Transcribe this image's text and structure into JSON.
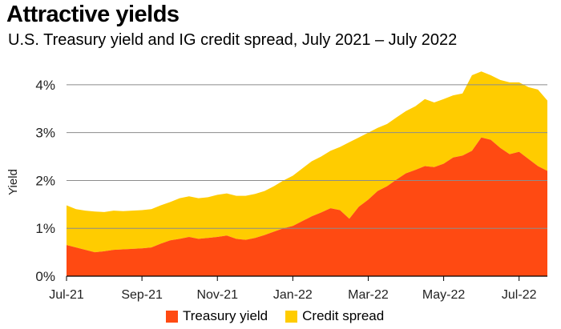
{
  "header": {
    "title": "Attractive yields",
    "subtitle": "U.S. Treasury yield and IG credit spread, July 2021 – July 2022"
  },
  "colors": {
    "treasury": "#FF4A12",
    "credit_spread": "#FFCC00",
    "grid": "#8C8C8C"
  },
  "chart_data": {
    "type": "area",
    "stacked": true,
    "title": "Attractive yields",
    "subtitle": "U.S. Treasury yield and IG credit spread, July 2021 – July 2022",
    "xlabel": "",
    "ylabel": "Yield",
    "ylim": [
      0,
      4.4
    ],
    "y_ticks": [
      0,
      1,
      2,
      3,
      4
    ],
    "y_tick_labels": [
      "0%",
      "1%",
      "2%",
      "3%",
      "4%"
    ],
    "x_ticks": [
      0,
      2,
      4,
      6,
      8,
      10,
      12
    ],
    "x_tick_labels": [
      "Jul-21",
      "Sep-21",
      "Nov-21",
      "Jan-22",
      "Mar-22",
      "May-22",
      "Jul-22"
    ],
    "grid": "horizontal",
    "legend_position": "bottom",
    "x": [
      0,
      0.25,
      0.5,
      0.75,
      1,
      1.25,
      1.5,
      1.75,
      2,
      2.25,
      2.5,
      2.75,
      3,
      3.25,
      3.5,
      3.75,
      4,
      4.25,
      4.5,
      4.75,
      5,
      5.25,
      5.5,
      5.75,
      6,
      6.25,
      6.5,
      6.75,
      7,
      7.25,
      7.5,
      7.75,
      8,
      8.25,
      8.5,
      8.75,
      9,
      9.25,
      9.5,
      9.75,
      10,
      10.25,
      10.5,
      10.75,
      11,
      11.25,
      11.5,
      11.75,
      12,
      12.25,
      12.5,
      12.75
    ],
    "series": [
      {
        "name": "Treasury yield",
        "color": "#FF4A12",
        "values": [
          0.65,
          0.6,
          0.55,
          0.5,
          0.52,
          0.55,
          0.56,
          0.57,
          0.58,
          0.6,
          0.68,
          0.75,
          0.78,
          0.82,
          0.78,
          0.8,
          0.82,
          0.85,
          0.78,
          0.76,
          0.8,
          0.86,
          0.93,
          1.0,
          1.05,
          1.15,
          1.25,
          1.33,
          1.42,
          1.38,
          1.2,
          1.45,
          1.6,
          1.78,
          1.88,
          2.02,
          2.15,
          2.22,
          2.3,
          2.28,
          2.35,
          2.48,
          2.52,
          2.62,
          2.9,
          2.85,
          2.68,
          2.55,
          2.6,
          2.45,
          2.3,
          2.2
        ]
      },
      {
        "name": "Credit spread",
        "color": "#FFCC00",
        "values": [
          0.83,
          0.8,
          0.82,
          0.85,
          0.82,
          0.82,
          0.8,
          0.8,
          0.8,
          0.8,
          0.8,
          0.8,
          0.85,
          0.85,
          0.85,
          0.85,
          0.88,
          0.88,
          0.9,
          0.92,
          0.92,
          0.92,
          0.95,
          1.0,
          1.05,
          1.1,
          1.15,
          1.17,
          1.2,
          1.32,
          1.6,
          1.45,
          1.4,
          1.32,
          1.3,
          1.3,
          1.3,
          1.33,
          1.4,
          1.35,
          1.35,
          1.3,
          1.3,
          1.58,
          1.38,
          1.35,
          1.42,
          1.5,
          1.45,
          1.5,
          1.6,
          1.47
        ]
      }
    ]
  }
}
